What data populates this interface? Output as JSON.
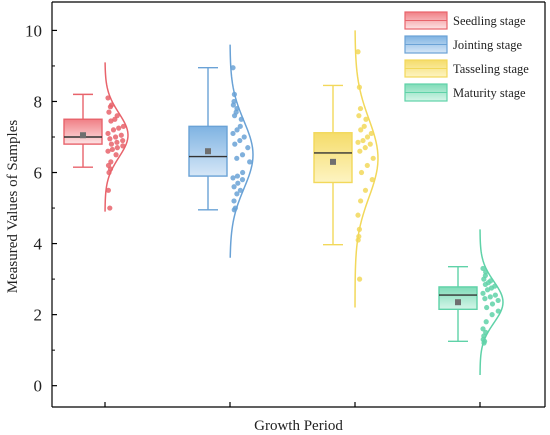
{
  "chart_data": {
    "type": "box-violin",
    "title": "",
    "xlabel": "Growth Period",
    "ylabel": "Measured Values of Samples",
    "ylim": [
      -0.6,
      10.8
    ],
    "yticks": [
      0,
      2,
      4,
      6,
      8,
      10
    ],
    "grid": false,
    "legend_position": "top-right",
    "series": [
      {
        "name": "Seedling stage",
        "color": "#e8636b",
        "fill_light": "#fde3e4",
        "fill_dark": "#f07f85",
        "whisker_low": 6.15,
        "q1": 6.8,
        "median": 7.0,
        "q3": 7.5,
        "whisker_high": 8.2,
        "mean": 7.05,
        "curve_range": [
          4.9,
          9.1
        ],
        "curve_peak": 7.05,
        "curve_sd": 0.62,
        "points": [
          8.1,
          7.9,
          7.85,
          7.7,
          7.6,
          7.5,
          7.45,
          7.3,
          7.25,
          7.2,
          7.1,
          7.05,
          7.0,
          6.95,
          6.9,
          6.85,
          6.8,
          6.75,
          6.7,
          6.65,
          6.6,
          6.5,
          6.3,
          6.2,
          6.1,
          6.0,
          5.5,
          5.0
        ]
      },
      {
        "name": "Jointing stage",
        "color": "#6aa2d6",
        "fill_light": "#d6e7f7",
        "fill_dark": "#7fb3e2",
        "whisker_low": 4.95,
        "q1": 5.9,
        "median": 6.45,
        "q3": 7.3,
        "whisker_high": 8.95,
        "mean": 6.6,
        "curve_range": [
          3.6,
          9.6
        ],
        "curve_peak": 6.5,
        "curve_sd": 0.95,
        "points": [
          8.95,
          8.2,
          8.0,
          7.9,
          7.8,
          7.7,
          7.6,
          7.5,
          7.3,
          7.2,
          7.1,
          7.0,
          6.9,
          6.8,
          6.7,
          6.5,
          6.4,
          6.3,
          6.0,
          5.9,
          5.85,
          5.8,
          5.7,
          5.6,
          5.5,
          5.4,
          5.2,
          5.0,
          4.95
        ]
      },
      {
        "name": "Tasseling stage",
        "color": "#f2d85a",
        "fill_light": "#fdf4c2",
        "fill_dark": "#f5dc6a",
        "whisker_low": 3.97,
        "q1": 5.72,
        "median": 6.55,
        "q3": 7.12,
        "whisker_high": 8.45,
        "mean": 6.3,
        "curve_range": [
          2.2,
          10.0
        ],
        "curve_peak": 6.4,
        "curve_sd": 1.1,
        "points": [
          9.4,
          8.4,
          7.8,
          7.6,
          7.5,
          7.3,
          7.2,
          7.1,
          7.0,
          6.9,
          6.85,
          6.8,
          6.7,
          6.6,
          6.4,
          6.2,
          6.0,
          5.8,
          5.5,
          5.2,
          4.8,
          4.4,
          4.2,
          4.1,
          3.0
        ]
      },
      {
        "name": "Maturity stage",
        "color": "#5fd2a8",
        "fill_light": "#d4f5e8",
        "fill_dark": "#7fdcb8",
        "whisker_low": 1.25,
        "q1": 2.15,
        "median": 2.55,
        "q3": 2.78,
        "whisker_high": 3.35,
        "mean": 2.35,
        "curve_range": [
          0.3,
          4.4
        ],
        "curve_peak": 2.35,
        "curve_sd": 0.58,
        "points": [
          3.3,
          3.2,
          3.1,
          3.0,
          2.95,
          2.9,
          2.85,
          2.8,
          2.75,
          2.7,
          2.6,
          2.55,
          2.5,
          2.45,
          2.4,
          2.3,
          2.2,
          2.1,
          2.0,
          1.8,
          1.6,
          1.5,
          1.4,
          1.3,
          1.25,
          1.2
        ]
      }
    ]
  }
}
